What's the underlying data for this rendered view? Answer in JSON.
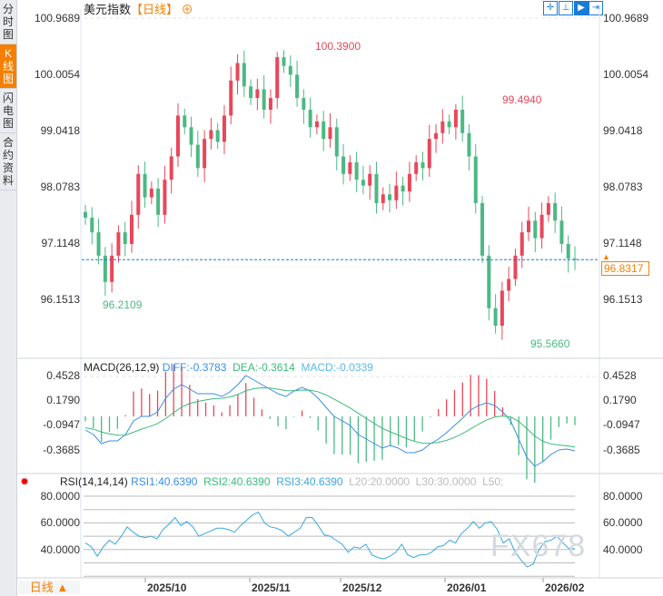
{
  "sidebar": {
    "tabs": [
      {
        "label": "分时图",
        "active": false
      },
      {
        "label": "K线图",
        "active": true
      },
      {
        "label": "闪电图",
        "active": false
      },
      {
        "label": "合约资料",
        "active": false
      }
    ]
  },
  "header": {
    "title": "美元指数",
    "period": "【日线】",
    "add_icon": "plus-circle-icon",
    "tools": [
      "crosshair-icon",
      "range-icon",
      "fit-icon",
      "scroll-end-icon"
    ]
  },
  "price_axis": [
    "100.9689",
    "100.0054",
    "99.0418",
    "98.0783",
    "97.1148",
    "96.1513"
  ],
  "current_price": "96.8317",
  "annotations": {
    "high": "100.3900",
    "mid_high": "99.4940",
    "low1": "96.2109",
    "low2": "95.5660"
  },
  "macd": {
    "label": "MACD(26,12,9)",
    "diff": "DIFF:-0.3783",
    "dea": "DEA:-0.3614",
    "macd": "MACD:-0.0339",
    "axis": [
      "0.4528",
      "0.1790",
      "-0.0947",
      "-0.3685"
    ]
  },
  "rsi": {
    "label": "RSI(14,14,14)",
    "rsi1": "RSI1:40.6390",
    "rsi2": "RSI2:40.6390",
    "rsi3": "RSI3:40.6390",
    "l20": "L20:20.0000",
    "l30": "L30:30.0000",
    "l50": "L50:",
    "axis": [
      "80.0000",
      "60.0000",
      "40.0000"
    ]
  },
  "dates": [
    "2025/10",
    "2025/11",
    "2025/12",
    "2026/01",
    "2026/02"
  ],
  "period_button": "日线 ▲",
  "watermark": "FX678",
  "colors": {
    "up": "#e8475a",
    "down": "#4cb884",
    "accent": "#f77f00",
    "diff": "#3a8ee6",
    "dea": "#3cba7c",
    "rsi": "#3aa8e0"
  },
  "chart_data": {
    "type": "candlestick",
    "ylim": [
      95.3,
      101.1
    ],
    "closes": [
      97.55,
      97.3,
      96.9,
      96.45,
      96.9,
      97.3,
      97.1,
      97.6,
      98.3,
      97.9,
      98.05,
      97.6,
      98.2,
      98.6,
      99.3,
      99.1,
      98.8,
      98.4,
      98.9,
      99.05,
      98.85,
      99.3,
      99.9,
      100.2,
      99.8,
      99.6,
      99.75,
      99.4,
      99.6,
      100.3,
      100.15,
      100.0,
      99.6,
      99.4,
      99.1,
      99.2,
      98.9,
      99.1,
      98.6,
      98.3,
      98.5,
      98.2,
      98.1,
      98.3,
      97.8,
      97.95,
      97.85,
      98.1,
      98.0,
      98.3,
      98.5,
      98.4,
      98.9,
      99.0,
      99.2,
      99.1,
      99.4,
      99.0,
      98.6,
      97.8,
      96.9,
      96.0,
      95.7,
      96.3,
      96.5,
      96.9,
      97.3,
      97.5,
      97.2,
      97.6,
      97.8,
      97.5,
      97.1,
      96.85,
      96.83
    ],
    "macd_diff": [
      -0.15,
      -0.2,
      -0.3,
      -0.27,
      -0.27,
      -0.2,
      -0.05,
      0.0,
      0.0,
      0.05,
      0.2,
      0.3,
      0.35,
      0.3,
      0.25,
      0.25,
      0.25,
      0.22,
      0.27,
      0.35,
      0.45,
      0.4,
      0.35,
      0.3,
      0.25,
      0.22,
      0.28,
      0.32,
      0.28,
      0.2,
      0.1,
      0.0,
      -0.05,
      -0.1,
      -0.2,
      -0.25,
      -0.3,
      -0.35,
      -0.32,
      -0.35,
      -0.4,
      -0.4,
      -0.37,
      -0.3,
      -0.25,
      -0.18,
      -0.1,
      -0.02,
      0.07,
      0.12,
      0.15,
      0.12,
      0.05,
      -0.05,
      -0.25,
      -0.45,
      -0.55,
      -0.5,
      -0.42,
      -0.37,
      -0.36,
      -0.38
    ],
    "rsi1": [
      45,
      42,
      35,
      42,
      47,
      44,
      50,
      57,
      53,
      50,
      49,
      50,
      48,
      55,
      59,
      64,
      58,
      61,
      57,
      50,
      52,
      54,
      56,
      56,
      55,
      53,
      58,
      62,
      66,
      68,
      60,
      57,
      56,
      54,
      50,
      53,
      56,
      64,
      64,
      58,
      51,
      50,
      47,
      44,
      38,
      42,
      41,
      44,
      36,
      34,
      33,
      35,
      38,
      44,
      36,
      34,
      36,
      36,
      38,
      42,
      43,
      47,
      45,
      52,
      56,
      61,
      56,
      60,
      61,
      55,
      45,
      48,
      38,
      32,
      27,
      29,
      40,
      46,
      47,
      50,
      45,
      40.6,
      40.6
    ]
  }
}
